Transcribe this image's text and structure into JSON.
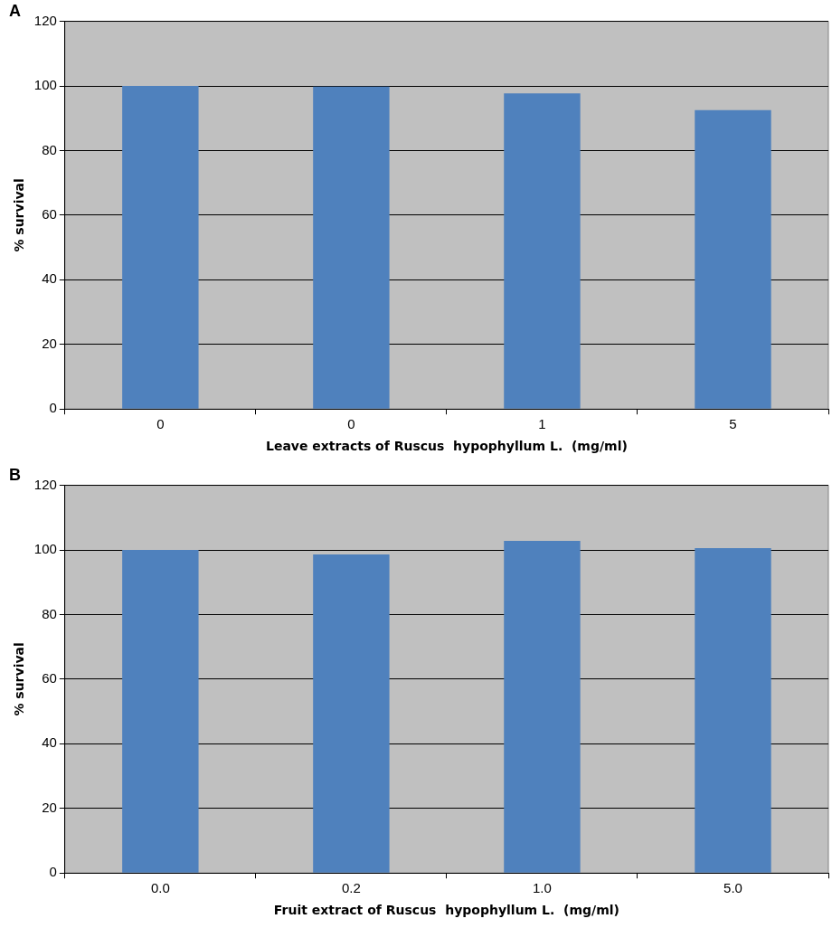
{
  "chart_data": [
    {
      "type": "bar",
      "title": "A",
      "xlabel": "Leave extracts of Ruscus  hypophyllum L.  (mg/ml)",
      "ylabel": "% survival",
      "categories": [
        "0",
        "0",
        "1",
        "5"
      ],
      "values": [
        100,
        99.8,
        97.7,
        92.5
      ],
      "color": "#4f81bd",
      "ylim": [
        0,
        120
      ],
      "yticks": [
        0,
        20,
        40,
        60,
        80,
        100,
        120
      ],
      "grid": "y",
      "legend": false
    },
    {
      "type": "bar",
      "title": "B",
      "xlabel": "Fruit extract of Ruscus  hypophyllum L.  (mg/ml)",
      "ylabel": "% survival",
      "categories": [
        "0.0",
        "0.2",
        "1.0",
        "5.0"
      ],
      "values": [
        100,
        98.6,
        102.8,
        100.6
      ],
      "color": "#4f81bd",
      "ylim": [
        0,
        120
      ],
      "yticks": [
        0,
        20,
        40,
        60,
        80,
        100,
        120
      ],
      "grid": "y",
      "legend": false
    }
  ]
}
